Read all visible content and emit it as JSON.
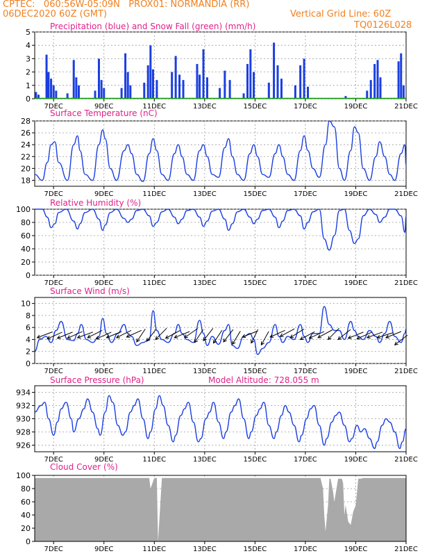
{
  "header": {
    "line1_left": "CPTEC:   060:56W-05:09N   PROX01: NORMANDIA (RR)",
    "line2_left": "06DEC2020 60Z (GMT)",
    "line2_right": "Vertical Grid Line: 60Z",
    "line3_right": "TQ0126L028"
  },
  "colors": {
    "header": "#f08020",
    "title": "#e0208a",
    "series": "#1a3fe0",
    "snow": "#10a010",
    "cloud": "#a9a9a9",
    "wind_arrow": "#000000",
    "grid": "#999999"
  },
  "x_axis": {
    "tick_labels": [
      "7DEC",
      "9DEC",
      "11DEC",
      "13DEC",
      "15DEC",
      "17DEC",
      "19DEC",
      "21DEC"
    ],
    "tick_days": [
      7,
      9,
      11,
      13,
      15,
      17,
      19,
      21
    ],
    "range": [
      6.25,
      21.0
    ]
  },
  "chart_data": [
    {
      "id": "precip",
      "type": "bar",
      "title": "Precipitation (blue) and Snow Fall (green) (mm/h)",
      "ylim": [
        0,
        5
      ],
      "yticks": [
        0,
        1,
        2,
        3,
        4,
        5
      ],
      "snow_values": "all zero",
      "series_by_day": [
        {
          "day": 6.3,
          "value": 0.5
        },
        {
          "day": 6.4,
          "value": 0.3
        },
        {
          "day": 6.72,
          "value": 3.3
        },
        {
          "day": 6.8,
          "value": 2.0
        },
        {
          "day": 6.9,
          "value": 1.5
        },
        {
          "day": 7.0,
          "value": 1.0
        },
        {
          "day": 7.1,
          "value": 0.6
        },
        {
          "day": 7.55,
          "value": 0.4
        },
        {
          "day": 7.8,
          "value": 2.9
        },
        {
          "day": 7.9,
          "value": 1.6
        },
        {
          "day": 8.0,
          "value": 1.0
        },
        {
          "day": 8.65,
          "value": 0.6
        },
        {
          "day": 8.8,
          "value": 3.0
        },
        {
          "day": 8.9,
          "value": 1.4
        },
        {
          "day": 9.0,
          "value": 0.8
        },
        {
          "day": 9.7,
          "value": 0.8
        },
        {
          "day": 9.85,
          "value": 3.4
        },
        {
          "day": 9.95,
          "value": 2.0
        },
        {
          "day": 10.05,
          "value": 1.0
        },
        {
          "day": 10.6,
          "value": 1.2
        },
        {
          "day": 10.75,
          "value": 2.5
        },
        {
          "day": 10.85,
          "value": 4.0
        },
        {
          "day": 10.95,
          "value": 2.2
        },
        {
          "day": 11.1,
          "value": 1.4
        },
        {
          "day": 11.7,
          "value": 2.0
        },
        {
          "day": 11.85,
          "value": 3.2
        },
        {
          "day": 12.0,
          "value": 1.8
        },
        {
          "day": 12.15,
          "value": 1.4
        },
        {
          "day": 12.7,
          "value": 2.6
        },
        {
          "day": 12.8,
          "value": 1.8
        },
        {
          "day": 12.95,
          "value": 3.7
        },
        {
          "day": 13.1,
          "value": 1.6
        },
        {
          "day": 13.6,
          "value": 0.8
        },
        {
          "day": 13.8,
          "value": 2.1
        },
        {
          "day": 14.0,
          "value": 1.4
        },
        {
          "day": 14.55,
          "value": 0.4
        },
        {
          "day": 14.7,
          "value": 2.6
        },
        {
          "day": 14.82,
          "value": 3.7
        },
        {
          "day": 14.95,
          "value": 2.0
        },
        {
          "day": 15.55,
          "value": 1.2
        },
        {
          "day": 15.75,
          "value": 4.2
        },
        {
          "day": 15.9,
          "value": 2.5
        },
        {
          "day": 16.05,
          "value": 1.5
        },
        {
          "day": 16.6,
          "value": 1.0
        },
        {
          "day": 16.8,
          "value": 2.5
        },
        {
          "day": 16.95,
          "value": 3.0
        },
        {
          "day": 17.1,
          "value": 0.9
        },
        {
          "day": 18.6,
          "value": 0.2
        },
        {
          "day": 19.45,
          "value": 0.6
        },
        {
          "day": 19.6,
          "value": 1.4
        },
        {
          "day": 19.75,
          "value": 2.6
        },
        {
          "day": 19.87,
          "value": 2.9
        },
        {
          "day": 19.98,
          "value": 1.6
        },
        {
          "day": 20.7,
          "value": 2.8
        },
        {
          "day": 20.8,
          "value": 3.4
        },
        {
          "day": 20.9,
          "value": 1.0
        }
      ]
    },
    {
      "id": "temp",
      "type": "line",
      "title": "Surface Temperature (nC)",
      "ylim": [
        17,
        28
      ],
      "yticks": [
        18,
        20,
        22,
        24,
        26,
        28
      ],
      "x": [
        6.25,
        6.55,
        6.75,
        6.9,
        7.05,
        7.2,
        7.55,
        7.8,
        7.95,
        8.05,
        8.25,
        8.55,
        8.8,
        8.95,
        9.05,
        9.25,
        9.5,
        9.8,
        9.95,
        10.1,
        10.3,
        10.55,
        10.8,
        10.95,
        11.1,
        11.3,
        11.55,
        11.8,
        11.95,
        12.1,
        12.3,
        12.55,
        12.8,
        12.95,
        13.1,
        13.3,
        13.55,
        13.8,
        13.95,
        14.1,
        14.3,
        14.55,
        14.8,
        14.95,
        15.1,
        15.3,
        15.55,
        15.8,
        15.95,
        16.1,
        16.3,
        16.55,
        16.8,
        16.95,
        17.1,
        17.3,
        17.55,
        17.8,
        17.95,
        18.15,
        18.35,
        18.55,
        18.8,
        18.95,
        19.1,
        19.3,
        19.55,
        19.8,
        19.95,
        20.15,
        20.35,
        20.55,
        20.8,
        20.95,
        21.0
      ],
      "values": [
        19,
        18,
        21,
        24,
        24.5,
        21,
        18,
        24,
        25.5,
        23,
        19,
        18,
        24,
        26.5,
        25,
        20,
        18,
        23,
        24,
        22.5,
        19,
        17.8,
        22.5,
        25,
        23,
        19,
        18,
        22.5,
        24,
        22,
        19,
        18,
        23,
        24,
        22,
        19,
        18.5,
        23.5,
        25,
        22,
        19,
        18,
        22.5,
        24,
        22,
        19,
        18.5,
        22.5,
        24,
        22,
        19,
        18,
        23,
        25.5,
        23,
        20,
        18.5,
        24,
        28,
        27,
        20,
        18,
        23,
        27,
        26,
        20,
        18,
        22,
        24.5,
        22,
        19,
        18,
        22.5,
        24,
        20.5
      ]
    },
    {
      "id": "rh",
      "type": "line",
      "title": "Relative Humidity (%)",
      "ylim": [
        0,
        100
      ],
      "yticks": [
        0,
        20,
        40,
        60,
        80,
        100
      ],
      "x": [
        6.25,
        6.55,
        6.75,
        6.9,
        7.05,
        7.2,
        7.5,
        7.8,
        7.95,
        8.05,
        8.25,
        8.55,
        8.8,
        8.95,
        9.05,
        9.25,
        9.5,
        9.8,
        9.95,
        10.1,
        10.3,
        10.55,
        10.8,
        10.95,
        11.1,
        11.3,
        11.55,
        11.8,
        11.95,
        12.1,
        12.3,
        12.55,
        12.8,
        12.95,
        13.1,
        13.3,
        13.55,
        13.8,
        13.95,
        14.1,
        14.3,
        14.55,
        14.8,
        14.95,
        15.1,
        15.3,
        15.55,
        15.8,
        15.95,
        16.1,
        16.3,
        16.55,
        16.8,
        16.95,
        17.1,
        17.3,
        17.55,
        17.75,
        17.95,
        18.15,
        18.35,
        18.55,
        18.75,
        18.95,
        19.1,
        19.3,
        19.55,
        19.8,
        19.95,
        20.15,
        20.35,
        20.55,
        20.8,
        20.95,
        21.0
      ],
      "values": [
        100,
        100,
        88,
        72,
        78,
        95,
        100,
        82,
        70,
        78,
        95,
        100,
        85,
        68,
        76,
        95,
        100,
        86,
        80,
        85,
        98,
        100,
        90,
        74,
        80,
        96,
        100,
        88,
        78,
        85,
        98,
        100,
        88,
        74,
        82,
        97,
        100,
        85,
        68,
        78,
        96,
        100,
        88,
        78,
        85,
        98,
        100,
        88,
        72,
        82,
        98,
        100,
        90,
        70,
        80,
        96,
        100,
        55,
        38,
        60,
        98,
        100,
        68,
        48,
        55,
        90,
        100,
        92,
        80,
        88,
        100,
        100,
        90,
        65,
        90
      ]
    },
    {
      "id": "wind",
      "type": "line",
      "title": "Surface Wind (m/s)",
      "ylim": [
        0,
        11
      ],
      "yticks": [
        0,
        2,
        4,
        6,
        8,
        10
      ],
      "x": [
        6.25,
        6.45,
        6.7,
        6.9,
        7.1,
        7.3,
        7.55,
        7.8,
        7.95,
        8.1,
        8.3,
        8.55,
        8.8,
        8.95,
        9.1,
        9.3,
        9.55,
        9.8,
        9.95,
        10.1,
        10.3,
        10.55,
        10.8,
        10.95,
        11.1,
        11.3,
        11.55,
        11.8,
        11.95,
        12.1,
        12.3,
        12.55,
        12.8,
        12.95,
        13.1,
        13.3,
        13.55,
        13.8,
        13.95,
        14.1,
        14.3,
        14.55,
        14.8,
        14.95,
        15.1,
        15.3,
        15.55,
        15.8,
        15.95,
        16.1,
        16.3,
        16.55,
        16.8,
        16.95,
        17.1,
        17.3,
        17.55,
        17.75,
        17.95,
        18.15,
        18.35,
        18.55,
        18.8,
        18.95,
        19.1,
        19.3,
        19.55,
        19.8,
        19.95,
        20.15,
        20.35,
        20.55,
        20.8,
        20.95,
        21.0
      ],
      "values": [
        2,
        4,
        4.5,
        3.5,
        5.5,
        7,
        4,
        3.8,
        5,
        6.5,
        4,
        3.5,
        4.5,
        7.5,
        5,
        3.5,
        5,
        6.5,
        5,
        4.5,
        3,
        3.5,
        4,
        8.8,
        5.5,
        4,
        3.5,
        5,
        6.5,
        5,
        4,
        3.5,
        7.2,
        5,
        3,
        4.5,
        3.2,
        5.5,
        6.5,
        3,
        2.5,
        4.5,
        5,
        4,
        1.5,
        2.5,
        3.5,
        6.5,
        4.5,
        3.5,
        4.5,
        4,
        6.5,
        4.5,
        3.5,
        5,
        5,
        9.5,
        6.5,
        5.5,
        5.5,
        4,
        7,
        5.5,
        4.5,
        4,
        5.5,
        4.5,
        3.5,
        5,
        7,
        4.5,
        3.5,
        5,
        5.8
      ],
      "arrows_by_day": [
        {
          "day": 6.35,
          "speed": 4.3,
          "dx": 1,
          "dy": -0.42
        },
        {
          "day": 6.75,
          "speed": 4.1,
          "dx": 1,
          "dy": -0.5
        },
        {
          "day": 7.15,
          "speed": 4.2,
          "dx": 1,
          "dy": -0.45
        },
        {
          "day": 7.55,
          "speed": 4.2,
          "dx": 1,
          "dy": -0.5
        },
        {
          "day": 7.95,
          "speed": 4.3,
          "dx": 1,
          "dy": -0.4
        },
        {
          "day": 8.35,
          "speed": 4.3,
          "dx": 1,
          "dy": -0.55
        },
        {
          "day": 8.7,
          "speed": 4.1,
          "dx": 1,
          "dy": -0.5
        },
        {
          "day": 9.1,
          "speed": 4.3,
          "dx": 1,
          "dy": -0.45
        },
        {
          "day": 9.5,
          "speed": 4.3,
          "dx": 1,
          "dy": -0.55
        },
        {
          "day": 9.9,
          "speed": 4.4,
          "dx": 1,
          "dy": -0.5
        },
        {
          "day": 10.3,
          "speed": 3.6,
          "dx": 0.6,
          "dy": -1
        },
        {
          "day": 10.7,
          "speed": 3.7,
          "dx": 0.7,
          "dy": -1
        },
        {
          "day": 11.05,
          "speed": 4.0,
          "dx": 0.8,
          "dy": -0.9
        },
        {
          "day": 11.45,
          "speed": 4.2,
          "dx": 1,
          "dy": -0.6
        },
        {
          "day": 11.8,
          "speed": 4.3,
          "dx": 1,
          "dy": -0.45
        },
        {
          "day": 12.2,
          "speed": 4.3,
          "dx": 0.9,
          "dy": -0.7
        },
        {
          "day": 12.6,
          "speed": 3.5,
          "dx": 0.6,
          "dy": -1
        },
        {
          "day": 12.95,
          "speed": 3.8,
          "dx": 0.7,
          "dy": -1
        },
        {
          "day": 13.35,
          "speed": 3.4,
          "dx": 0.6,
          "dy": -1
        },
        {
          "day": 13.75,
          "speed": 3.6,
          "dx": 0.7,
          "dy": -1
        },
        {
          "day": 14.1,
          "speed": 3.2,
          "dx": 0.55,
          "dy": -1
        },
        {
          "day": 14.5,
          "speed": 4.4,
          "dx": 1,
          "dy": -0.45
        },
        {
          "day": 14.85,
          "speed": 3.4,
          "dx": 0.45,
          "dy": -1
        },
        {
          "day": 15.25,
          "speed": 3.1,
          "dx": 0.5,
          "dy": -1
        },
        {
          "day": 15.6,
          "speed": 4.4,
          "dx": 1,
          "dy": -0.5
        },
        {
          "day": 16.0,
          "speed": 4.5,
          "dx": 1,
          "dy": -0.6
        },
        {
          "day": 16.4,
          "speed": 4.3,
          "dx": 1,
          "dy": -0.7
        },
        {
          "day": 16.8,
          "speed": 4.0,
          "dx": 1,
          "dy": -0.6
        },
        {
          "day": 17.15,
          "speed": 4.2,
          "dx": 1,
          "dy": -0.5
        },
        {
          "day": 17.5,
          "speed": 4.3,
          "dx": 1,
          "dy": -0.6
        },
        {
          "day": 17.9,
          "speed": 4.0,
          "dx": 0.8,
          "dy": -0.9
        },
        {
          "day": 18.3,
          "speed": 4.0,
          "dx": 0.9,
          "dy": -0.8
        },
        {
          "day": 18.7,
          "speed": 4.2,
          "dx": 1,
          "dy": -0.45
        },
        {
          "day": 19.05,
          "speed": 4.1,
          "dx": 1,
          "dy": -0.5
        },
        {
          "day": 19.45,
          "speed": 4.3,
          "dx": 1,
          "dy": -0.4
        },
        {
          "day": 19.85,
          "speed": 4.3,
          "dx": 1,
          "dy": -0.35
        },
        {
          "day": 20.2,
          "speed": 4.3,
          "dx": 1,
          "dy": -0.45
        },
        {
          "day": 20.55,
          "speed": 3.1,
          "dx": 1,
          "dy": -0.85
        }
      ]
    },
    {
      "id": "pres",
      "type": "line",
      "title": "Surface Pressure (hPa)",
      "annotation": "Model Altitude: 728.055 m",
      "ylim": [
        925,
        935
      ],
      "yticks": [
        926,
        928,
        930,
        932,
        934
      ],
      "x": [
        6.25,
        6.5,
        6.65,
        6.8,
        7.0,
        7.15,
        7.3,
        7.5,
        7.7,
        7.8,
        8.0,
        8.2,
        8.35,
        8.55,
        8.75,
        8.85,
        9.05,
        9.2,
        9.35,
        9.55,
        9.75,
        9.85,
        10.05,
        10.2,
        10.35,
        10.55,
        10.75,
        10.85,
        11.05,
        11.2,
        11.35,
        11.55,
        11.75,
        11.85,
        12.05,
        12.2,
        12.35,
        12.55,
        12.75,
        12.85,
        13.05,
        13.2,
        13.35,
        13.55,
        13.75,
        13.85,
        14.05,
        14.2,
        14.35,
        14.55,
        14.75,
        14.85,
        15.05,
        15.2,
        15.35,
        15.55,
        15.75,
        15.85,
        16.05,
        16.2,
        16.35,
        16.55,
        16.75,
        16.85,
        17.05,
        17.2,
        17.35,
        17.55,
        17.75,
        17.85,
        18.05,
        18.2,
        18.35,
        18.55,
        18.75,
        18.85,
        19.05,
        19.2,
        19.35,
        19.55,
        19.75,
        19.85,
        20.05,
        20.2,
        20.35,
        20.55,
        20.75,
        20.85,
        21.0
      ],
      "values": [
        931,
        932,
        932.5,
        930,
        927.5,
        929.5,
        931.5,
        932.5,
        930,
        928,
        930,
        931.5,
        933,
        931,
        928.5,
        927.5,
        931,
        933.5,
        932.5,
        929,
        927.5,
        928,
        931,
        932,
        933,
        930,
        927,
        928,
        931.5,
        933.5,
        932,
        929,
        926.5,
        927.5,
        930.5,
        931.5,
        932.5,
        929.5,
        926.5,
        927,
        930,
        931,
        932.5,
        929.5,
        927,
        928,
        931,
        932,
        933,
        930,
        927,
        928,
        930.5,
        931.5,
        932.5,
        929,
        927,
        928,
        930.5,
        932,
        931,
        929,
        926.5,
        927.5,
        930,
        931.5,
        932,
        929,
        926,
        927,
        929.5,
        930.5,
        931,
        929,
        926.5,
        927,
        929,
        928,
        928.5,
        927,
        925.5,
        926.5,
        929,
        930,
        929.5,
        928,
        925.5,
        926.5,
        928.5
      ]
    },
    {
      "id": "cloud",
      "type": "area",
      "title": "Cloud Cover (%)",
      "ylim": [
        0,
        100
      ],
      "yticks": [
        0,
        20,
        40,
        60,
        80,
        100
      ],
      "x": [
        6.25,
        10.8,
        10.85,
        11.0,
        11.1,
        11.15,
        11.3,
        17.6,
        17.7,
        17.75,
        17.8,
        17.9,
        17.95,
        18.0,
        18.1,
        18.15,
        18.3,
        18.45,
        18.5,
        18.55,
        18.6,
        18.7,
        18.8,
        18.9,
        19.0,
        19.1,
        19.2,
        19.3,
        19.4,
        21.0
      ],
      "values": [
        96,
        96,
        80,
        96,
        96,
        0,
        96,
        96,
        80,
        40,
        15,
        55,
        95,
        95,
        75,
        60,
        95,
        95,
        88,
        40,
        55,
        30,
        25,
        45,
        55,
        95,
        95,
        96,
        96,
        96
      ]
    }
  ]
}
